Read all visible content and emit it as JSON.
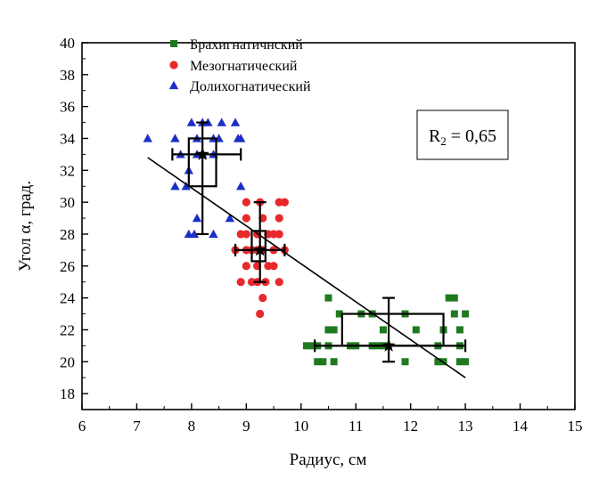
{
  "chart_data": {
    "type": "scatter",
    "xlabel": "Радиус, см",
    "ylabel": "Угол α, град.",
    "xlim": [
      6,
      15
    ],
    "ylim": [
      17,
      40
    ],
    "xticks": [
      6,
      7,
      8,
      9,
      10,
      11,
      12,
      13,
      14,
      15
    ],
    "yticks": [
      18,
      20,
      22,
      24,
      26,
      28,
      30,
      32,
      34,
      36,
      38,
      40
    ],
    "grid": false,
    "legend_position": "top-center",
    "annotation": {
      "prefix": "R",
      "subscript": "2",
      "suffix": " = 0,65"
    },
    "series": [
      {
        "name": "Брахигнатичнский",
        "marker": "square",
        "color": "#1f7a1f",
        "points": [
          [
            10.4,
            20
          ],
          [
            10.1,
            21
          ],
          [
            10.2,
            21
          ],
          [
            10.3,
            21
          ],
          [
            10.5,
            21
          ],
          [
            10.9,
            21
          ],
          [
            11.0,
            21
          ],
          [
            11.3,
            21
          ],
          [
            11.4,
            21
          ],
          [
            11.5,
            21
          ],
          [
            12.5,
            21
          ],
          [
            12.9,
            21
          ],
          [
            10.3,
            20
          ],
          [
            10.6,
            20
          ],
          [
            11.9,
            20
          ],
          [
            12.5,
            20
          ],
          [
            12.6,
            20
          ],
          [
            12.9,
            20
          ],
          [
            13.0,
            20
          ],
          [
            10.5,
            22
          ],
          [
            10.6,
            22
          ],
          [
            11.5,
            22
          ],
          [
            12.1,
            22
          ],
          [
            12.6,
            22
          ],
          [
            12.9,
            22
          ],
          [
            10.7,
            23
          ],
          [
            11.1,
            23
          ],
          [
            11.3,
            23
          ],
          [
            11.9,
            23
          ],
          [
            12.8,
            23
          ],
          [
            13.0,
            23
          ],
          [
            10.5,
            24
          ],
          [
            12.7,
            24
          ],
          [
            12.8,
            24
          ]
        ],
        "box": {
          "x_low": 10.75,
          "x_high": 12.6,
          "y_low": 21,
          "y_high": 23
        },
        "error_bars": {
          "x_min": 10.25,
          "x_max": 13.0,
          "y_min": 20,
          "y_max": 24
        },
        "center": [
          11.6,
          21
        ]
      },
      {
        "name": "Мезогнатический",
        "marker": "circle",
        "color": "#e8282b",
        "points": [
          [
            9.0,
            30
          ],
          [
            9.25,
            30
          ],
          [
            9.6,
            30
          ],
          [
            9.7,
            30
          ],
          [
            9.0,
            29
          ],
          [
            9.3,
            29
          ],
          [
            9.6,
            29
          ],
          [
            8.9,
            28
          ],
          [
            9.0,
            28
          ],
          [
            9.2,
            28
          ],
          [
            9.4,
            28
          ],
          [
            9.5,
            28
          ],
          [
            9.6,
            28
          ],
          [
            8.8,
            27
          ],
          [
            9.0,
            27
          ],
          [
            9.1,
            27
          ],
          [
            9.2,
            27
          ],
          [
            9.3,
            27
          ],
          [
            9.5,
            27
          ],
          [
            9.7,
            27
          ],
          [
            9.0,
            26
          ],
          [
            9.2,
            26
          ],
          [
            9.4,
            26
          ],
          [
            9.5,
            26
          ],
          [
            8.9,
            25
          ],
          [
            9.1,
            25
          ],
          [
            9.2,
            25
          ],
          [
            9.35,
            25
          ],
          [
            9.6,
            25
          ],
          [
            9.3,
            24
          ],
          [
            9.25,
            23
          ]
        ],
        "box": {
          "x_low": 9.1,
          "x_high": 9.35,
          "y_low": 26.3,
          "y_high": 28.2
        },
        "error_bars": {
          "x_min": 8.8,
          "x_max": 9.7,
          "y_min": 25,
          "y_max": 30
        },
        "center": [
          9.25,
          27
        ]
      },
      {
        "name": "Долихогнатический",
        "marker": "triangle",
        "color": "#1c2fc4",
        "points": [
          [
            7.2,
            34
          ],
          [
            7.7,
            34
          ],
          [
            8.1,
            34
          ],
          [
            8.4,
            34
          ],
          [
            8.5,
            34
          ],
          [
            8.9,
            34
          ],
          [
            8.85,
            34
          ],
          [
            8.0,
            35
          ],
          [
            8.2,
            35
          ],
          [
            8.3,
            35
          ],
          [
            8.55,
            35
          ],
          [
            8.8,
            35
          ],
          [
            7.8,
            33
          ],
          [
            8.1,
            33
          ],
          [
            8.2,
            33
          ],
          [
            8.4,
            33
          ],
          [
            7.95,
            32
          ],
          [
            7.9,
            31
          ],
          [
            7.7,
            31
          ],
          [
            8.9,
            31
          ],
          [
            8.1,
            29
          ],
          [
            8.7,
            29
          ],
          [
            7.95,
            28
          ],
          [
            8.05,
            28
          ],
          [
            8.4,
            28
          ]
        ],
        "box": {
          "x_low": 7.95,
          "x_high": 8.45,
          "y_low": 31,
          "y_high": 34
        },
        "error_bars": {
          "x_min": 7.65,
          "x_max": 8.9,
          "y_min": 28,
          "y_max": 35
        },
        "center": [
          8.2,
          33
        ]
      }
    ],
    "trendline": {
      "x1": 7.2,
      "y1": 32.8,
      "x2": 13.0,
      "y2": 19.0
    }
  }
}
